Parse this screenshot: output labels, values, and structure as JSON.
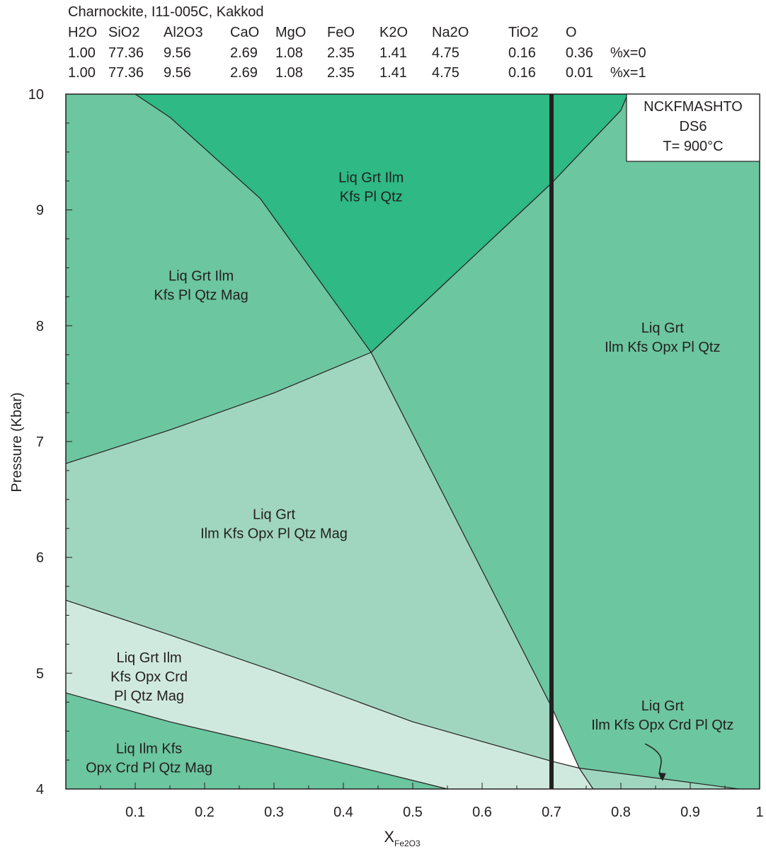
{
  "header": {
    "title": "Charnockite, I11-005C, Kakkod",
    "oxides": [
      "H2O",
      "SiO2",
      "Al2O3",
      "CaO",
      "MgO",
      "FeO",
      "K2O",
      "Na2O",
      "TiO2",
      "O"
    ],
    "rows": [
      {
        "values": [
          "1.00",
          "77.36",
          "9.56",
          "2.69",
          "1.08",
          "2.35",
          "1.41",
          "4.75",
          "0.16",
          "0.36"
        ],
        "label": "%x=0"
      },
      {
        "values": [
          "1.00",
          "77.36",
          "9.56",
          "2.69",
          "1.08",
          "2.35",
          "1.41",
          "4.75",
          "0.16",
          "0.01"
        ],
        "label": "%x=1"
      }
    ]
  },
  "chart_data": {
    "type": "pseudosection",
    "xlabel_main": "X",
    "xlabel_sub": "Fe2O3",
    "ylabel": "Pressure (Kbar)",
    "xlim": [
      0,
      1
    ],
    "ylim": [
      4,
      10
    ],
    "x_ticks": [
      0.1,
      0.2,
      0.3,
      0.4,
      0.5,
      0.6,
      0.7,
      0.8,
      0.9,
      1.0
    ],
    "x_tick_labels": [
      "0.1",
      "0.2",
      "0.3",
      "0.4",
      "0.5",
      "0.6",
      "0.7",
      "0.8",
      "0.9",
      "1"
    ],
    "y_ticks": [
      4,
      5,
      6,
      7,
      8,
      9,
      10
    ],
    "y_tick_labels": [
      "4",
      "5",
      "6",
      "7",
      "8",
      "9",
      "10"
    ],
    "info_box": [
      "NCKFMASHTO",
      "DS6",
      "T= 900°C"
    ],
    "colors": {
      "dark": "#2eb985",
      "medium": "#6cc69f",
      "light": "#a0d6bf",
      "lightest": "#d0e9de",
      "line": "#231f20"
    },
    "fields": [
      {
        "id": "top",
        "color": "dark",
        "label_lines": [
          "Liq Grt Ilm",
          "Kfs Pl Qtz"
        ],
        "label_at": [
          0.44,
          9.2
        ],
        "polygon": [
          [
            0.1,
            10
          ],
          [
            0.15,
            9.8
          ],
          [
            0.28,
            9.1
          ],
          [
            0.44,
            7.77
          ],
          [
            0.7,
            9.23
          ],
          [
            0.8,
            9.86
          ],
          [
            0.81,
            10
          ]
        ]
      },
      {
        "id": "upper-left",
        "color": "medium",
        "label_lines": [
          "Liq Grt Ilm",
          "Kfs Pl Qtz Mag"
        ],
        "label_at": [
          0.195,
          8.35
        ],
        "polygon": [
          [
            0,
            10
          ],
          [
            0.1,
            10
          ],
          [
            0.15,
            9.8
          ],
          [
            0.28,
            9.1
          ],
          [
            0.44,
            7.77
          ],
          [
            0.3,
            7.42
          ],
          [
            0.15,
            7.1
          ],
          [
            0,
            6.81
          ]
        ]
      },
      {
        "id": "middle",
        "color": "light",
        "label_lines": [
          "Liq Grt",
          "Ilm Kfs Opx Pl Qtz Mag"
        ],
        "label_at": [
          0.3,
          6.29
        ],
        "polygon": [
          [
            0,
            6.81
          ],
          [
            0.15,
            7.1
          ],
          [
            0.3,
            7.42
          ],
          [
            0.44,
            7.77
          ],
          [
            0.7,
            4.71
          ],
          [
            0.7,
            4.24
          ],
          [
            0.5,
            4.58
          ],
          [
            0.3,
            5.02
          ],
          [
            0.15,
            5.33
          ],
          [
            0,
            5.63
          ]
        ]
      },
      {
        "id": "lower-mid",
        "color": "lightest",
        "label_lines": [
          "Liq Grt Ilm",
          "Kfs Opx Crd",
          "Pl Qtz Mag"
        ],
        "label_at": [
          0.12,
          4.97
        ],
        "polygon": [
          [
            0,
            5.63
          ],
          [
            0.15,
            5.33
          ],
          [
            0.3,
            5.02
          ],
          [
            0.5,
            4.58
          ],
          [
            0.7,
            4.24
          ],
          [
            0.74,
            4.18
          ],
          [
            0.76,
            4
          ],
          [
            0.55,
            4
          ],
          [
            0.3,
            4.37
          ],
          [
            0.15,
            4.58
          ],
          [
            0,
            4.83
          ]
        ]
      },
      {
        "id": "bottom-left",
        "color": "medium",
        "label_lines": [
          "Liq Ilm Kfs",
          "Opx Crd Pl Qtz Mag"
        ],
        "label_at": [
          0.12,
          4.27
        ],
        "polygon": [
          [
            0,
            4.83
          ],
          [
            0.15,
            4.58
          ],
          [
            0.3,
            4.37
          ],
          [
            0.55,
            4
          ],
          [
            0,
            4
          ]
        ]
      },
      {
        "id": "right",
        "color": "medium",
        "label_lines": [
          "Liq Grt",
          "Ilm Kfs Opx Pl Qtz"
        ],
        "label_at": [
          0.86,
          7.9
        ],
        "polygon": [
          [
            0.44,
            7.77
          ],
          [
            0.7,
            9.23
          ],
          [
            0.8,
            9.86
          ],
          [
            0.81,
            10
          ],
          [
            1,
            10
          ],
          [
            1,
            4
          ],
          [
            0.97,
            4
          ],
          [
            0.87,
            4.08
          ],
          [
            0.74,
            4.18
          ],
          [
            0.7,
            4.71
          ]
        ]
      },
      {
        "id": "bottom-right",
        "color": "light",
        "label_lines": [],
        "label_at": [],
        "polygon": [
          [
            0.74,
            4.18
          ],
          [
            0.87,
            4.08
          ],
          [
            0.97,
            4
          ],
          [
            0.76,
            4
          ]
        ]
      }
    ],
    "boundaries": [
      [
        [
          0.1,
          10
        ],
        [
          0.15,
          9.8
        ],
        [
          0.28,
          9.1
        ],
        [
          0.44,
          7.77
        ]
      ],
      [
        [
          0.44,
          7.77
        ],
        [
          0.7,
          9.23
        ],
        [
          0.8,
          9.86
        ],
        [
          0.81,
          10
        ]
      ],
      [
        [
          0,
          6.81
        ],
        [
          0.15,
          7.1
        ],
        [
          0.3,
          7.42
        ],
        [
          0.44,
          7.77
        ]
      ],
      [
        [
          0.44,
          7.77
        ],
        [
          0.7,
          4.71
        ],
        [
          0.74,
          4.18
        ],
        [
          0.76,
          4
        ]
      ],
      [
        [
          0,
          5.63
        ],
        [
          0.15,
          5.33
        ],
        [
          0.3,
          5.02
        ],
        [
          0.5,
          4.58
        ],
        [
          0.7,
          4.24
        ],
        [
          0.74,
          4.18
        ],
        [
          0.87,
          4.08
        ],
        [
          0.97,
          4
        ]
      ],
      [
        [
          0,
          4.83
        ],
        [
          0.15,
          4.58
        ],
        [
          0.3,
          4.37
        ],
        [
          0.55,
          4
        ]
      ]
    ],
    "vertical_marker_x": 0.7,
    "callout": {
      "label_lines": [
        "Liq Grt",
        "Ilm Kfs Opx Crd Pl Qtz"
      ],
      "label_at": [
        0.86,
        4.64
      ],
      "arrow_path": [
        [
          0.835,
          4.39
        ],
        [
          0.878,
          4.26
        ],
        [
          0.845,
          4.18
        ],
        [
          0.86,
          4.08
        ]
      ]
    }
  }
}
